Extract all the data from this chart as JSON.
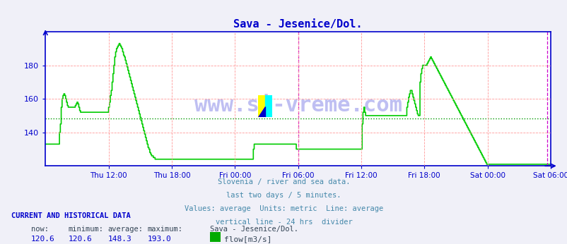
{
  "title": "Sava - Jesenice/Dol.",
  "title_color": "#0000cc",
  "bg_color": "#f0f0f8",
  "plot_bg_color": "#ffffff",
  "line_color": "#00cc00",
  "line_width": 1.2,
  "average_line_value": 148.3,
  "average_line_color": "#009900",
  "vline_color": "#cc00cc",
  "vline_position": 288,
  "second_vline_position": 572,
  "grid_color": "#ff9999",
  "axis_color": "#0000cc",
  "tick_color": "#0000cc",
  "tick_label_color": "#0000cc",
  "watermark": "www.si-vreme.com",
  "watermark_color": "#0000cc",
  "watermark_alpha": 0.25,
  "footer_lines": [
    "Slovenia / river and sea data.",
    "last two days / 5 minutes.",
    "Values: average  Units: metric  Line: average",
    "vertical line - 24 hrs  divider"
  ],
  "footer_color": "#4488aa",
  "stats_label": "CURRENT AND HISTORICAL DATA",
  "stats_label_color": "#0000cc",
  "stats": {
    "now": 120.6,
    "minimum": 120.6,
    "average": 148.3,
    "maximum": 193.0,
    "station": "Sava - Jesenice/Dol.",
    "unit": "flow[m3/s]",
    "legend_color": "#00aa00"
  },
  "x_tick_labels": [
    "Thu 12:00",
    "Thu 18:00",
    "Fri 00:00",
    "Fri 06:00",
    "Fri 12:00",
    "Fri 18:00",
    "Sat 00:00",
    "Sat 06:00"
  ],
  "x_tick_positions": [
    72,
    144,
    216,
    288,
    360,
    432,
    504,
    576
  ],
  "ylim": [
    120,
    200
  ],
  "yticks": [
    140,
    160,
    180
  ],
  "total_points": 576,
  "flow_data": [
    133,
    133,
    133,
    133,
    133,
    133,
    133,
    133,
    133,
    133,
    133,
    133,
    133,
    133,
    133,
    133,
    140,
    145,
    155,
    160,
    162,
    163,
    162,
    160,
    158,
    156,
    155,
    155,
    155,
    155,
    155,
    155,
    155,
    155,
    156,
    157,
    158,
    157,
    155,
    153,
    152,
    152,
    152,
    152,
    152,
    152,
    152,
    152,
    152,
    152,
    152,
    152,
    152,
    152,
    152,
    152,
    152,
    152,
    152,
    152,
    152,
    152,
    152,
    152,
    152,
    152,
    152,
    152,
    152,
    152,
    152,
    152,
    155,
    158,
    162,
    165,
    170,
    175,
    180,
    185,
    188,
    190,
    191,
    192,
    193,
    192,
    191,
    190,
    188,
    186,
    185,
    183,
    181,
    179,
    177,
    175,
    173,
    171,
    169,
    167,
    165,
    163,
    161,
    159,
    157,
    155,
    153,
    151,
    149,
    147,
    145,
    143,
    141,
    139,
    137,
    135,
    133,
    131,
    130,
    128,
    127,
    126,
    126,
    125,
    125,
    124,
    124,
    124,
    124,
    124,
    124,
    124,
    124,
    124,
    124,
    124,
    124,
    124,
    124,
    124,
    124,
    124,
    124,
    124,
    124,
    124,
    124,
    124,
    124,
    124,
    124,
    124,
    124,
    124,
    124,
    124,
    124,
    124,
    124,
    124,
    124,
    124,
    124,
    124,
    124,
    124,
    124,
    124,
    124,
    124,
    124,
    124,
    124,
    124,
    124,
    124,
    124,
    124,
    124,
    124,
    124,
    124,
    124,
    124,
    124,
    124,
    124,
    124,
    124,
    124,
    124,
    124,
    124,
    124,
    124,
    124,
    124,
    124,
    124,
    124,
    124,
    124,
    124,
    124,
    124,
    124,
    124,
    124,
    124,
    124,
    124,
    124,
    124,
    124,
    124,
    124,
    124,
    124,
    124,
    124,
    124,
    124,
    124,
    124,
    124,
    124,
    124,
    124,
    124,
    124,
    124,
    124,
    124,
    124,
    124,
    124,
    124,
    130,
    133,
    133,
    133,
    133,
    133,
    133,
    133,
    133,
    133,
    133,
    133,
    133,
    133,
    133,
    133,
    133,
    133,
    133,
    133,
    133,
    133,
    133,
    133,
    133,
    133,
    133,
    133,
    133,
    133,
    133,
    133,
    133,
    133,
    133,
    133,
    133,
    133,
    133,
    133,
    133,
    133,
    133,
    133,
    133,
    133,
    133,
    133,
    133,
    130,
    130,
    130,
    130,
    130,
    130,
    130,
    130,
    130,
    130,
    130,
    130,
    130,
    130,
    130,
    130,
    130,
    130,
    130,
    130,
    130,
    130,
    130,
    130,
    130,
    130,
    130,
    130,
    130,
    130,
    130,
    130,
    130,
    130,
    130,
    130,
    130,
    130,
    130,
    130,
    130,
    130,
    130,
    130,
    130,
    130,
    130,
    130,
    130,
    130,
    130,
    130,
    130,
    130,
    130,
    130,
    130,
    130,
    130,
    130,
    130,
    130,
    130,
    130,
    130,
    130,
    130,
    130,
    130,
    130,
    130,
    130,
    130,
    130,
    130,
    145,
    152,
    155,
    152,
    150,
    150,
    150,
    150,
    150,
    150,
    150,
    150,
    150,
    150,
    150,
    150,
    150,
    150,
    150,
    150,
    150,
    150,
    150,
    150,
    150,
    150,
    150,
    150,
    150,
    150,
    150,
    150,
    150,
    150,
    150,
    150,
    150,
    150,
    150,
    150,
    150,
    150,
    150,
    150,
    150,
    150,
    150,
    150,
    150,
    150,
    150,
    155,
    158,
    161,
    163,
    165,
    165,
    163,
    161,
    159,
    157,
    155,
    153,
    151,
    150,
    150,
    170,
    175,
    178,
    180,
    180,
    180,
    180,
    180,
    181,
    182,
    183,
    184,
    185,
    184,
    183,
    182,
    181,
    180,
    179,
    178,
    177,
    176,
    175,
    174,
    173,
    172,
    171,
    170,
    169,
    168,
    167,
    166,
    165,
    164,
    163,
    162,
    161,
    160,
    159,
    158,
    157,
    156,
    155,
    154,
    153,
    152,
    151,
    150,
    149,
    148,
    147,
    146,
    145,
    144,
    143,
    142,
    141,
    140,
    139,
    138,
    137,
    136,
    135,
    134,
    133,
    132,
    131,
    130,
    129,
    128,
    127,
    126,
    125,
    124,
    123,
    122,
    121,
    121,
    121,
    121,
    121,
    121,
    121,
    121,
    121,
    121,
    121,
    121,
    121,
    121,
    121,
    121,
    121,
    121,
    121,
    121,
    121,
    121,
    121,
    121,
    121,
    121,
    121,
    121,
    121,
    121,
    121,
    121,
    121,
    121,
    121,
    121,
    121,
    121,
    121,
    121,
    121,
    121,
    121,
    121,
    121,
    121,
    121,
    121,
    121,
    121,
    121,
    121,
    121,
    121,
    121,
    121,
    121,
    121,
    121,
    121,
    121,
    121,
    121,
    121,
    121,
    121,
    121,
    121,
    121,
    121,
    121,
    121,
    121
  ]
}
